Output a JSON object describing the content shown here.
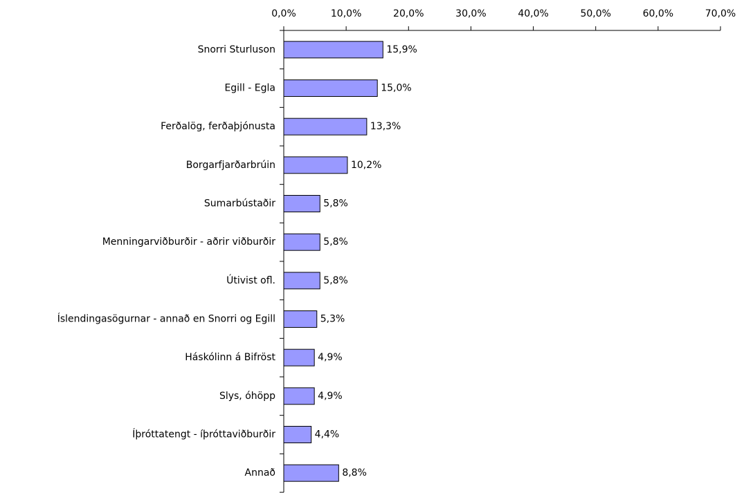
{
  "chart_data": {
    "type": "barh",
    "categories": [
      "Snorri Sturluson",
      "Egill - Egla",
      "Ferðalög, ferðaþjónusta",
      "Borgarfjarðarbrúin",
      "Sumarbústaðir",
      "Menningarviðburðir - aðrir viðburðir",
      "Útivist ofl.",
      "Íslendingasögurnar - annað en Snorri og Egill",
      "Háskólinn á Bifröst",
      "Slys, óhöpp",
      "Íþróttatengt - íþróttaviðburðir",
      "Annað"
    ],
    "values": [
      15.9,
      15.0,
      13.3,
      10.2,
      5.8,
      5.8,
      5.8,
      5.3,
      4.9,
      4.9,
      4.4,
      8.8
    ],
    "value_labels": [
      "15,9%",
      "15,0%",
      "13,3%",
      "10,2%",
      "5,8%",
      "5,8%",
      "5,8%",
      "5,3%",
      "4,9%",
      "4,9%",
      "4,4%",
      "8,8%"
    ],
    "color": "#9999ff",
    "xlim": [
      0,
      70
    ],
    "xticks": [
      {
        "value": 0,
        "label": "0,0%"
      },
      {
        "value": 10,
        "label": "10,0%"
      },
      {
        "value": 20,
        "label": "20,0%"
      },
      {
        "value": 30,
        "label": "30,0%"
      },
      {
        "value": 40,
        "label": "40,0%"
      },
      {
        "value": 50,
        "label": "50,0%"
      },
      {
        "value": 60,
        "label": "60,0%"
      },
      {
        "value": 70,
        "label": "70,0%"
      }
    ],
    "grid": false
  }
}
